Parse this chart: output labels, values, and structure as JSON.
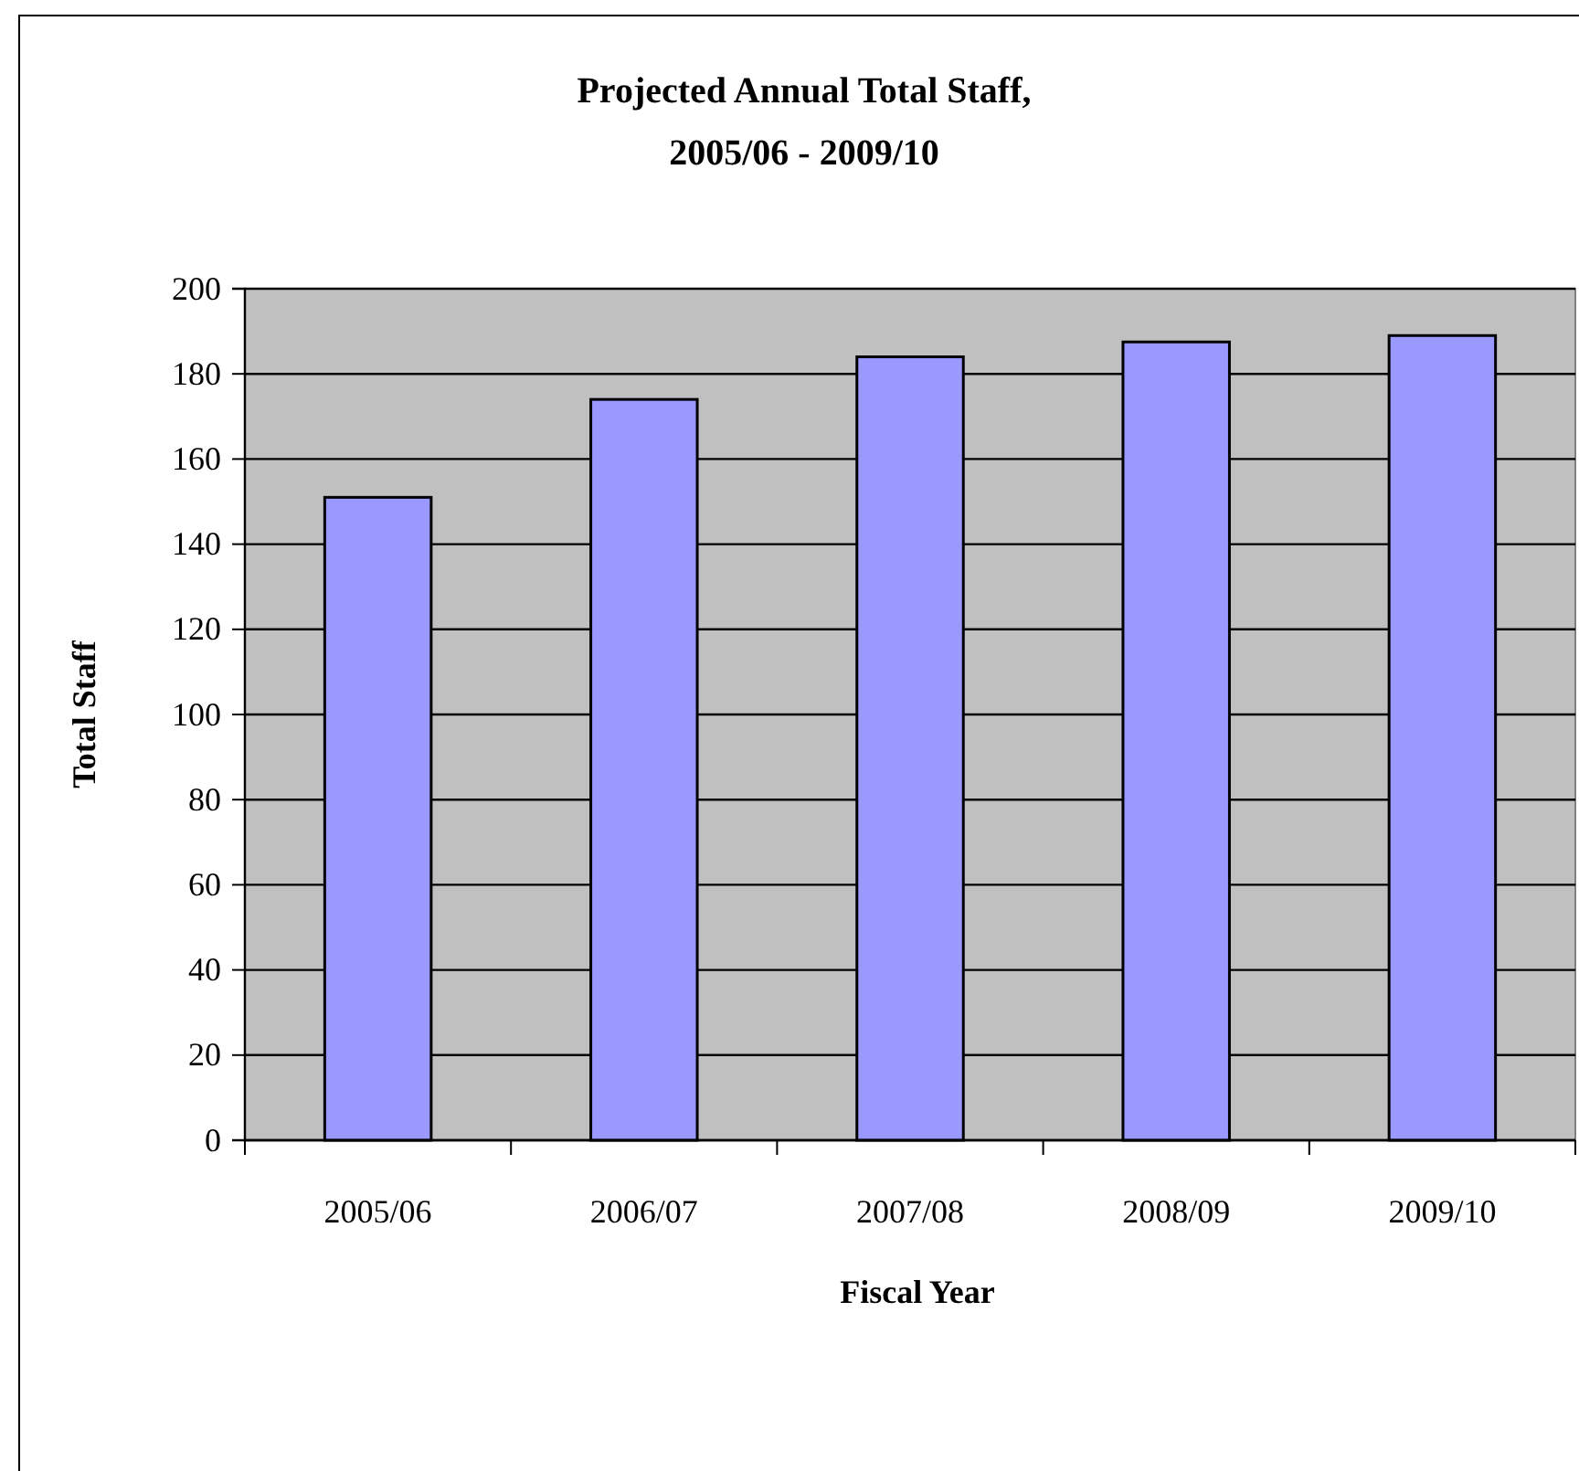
{
  "chart_data": {
    "type": "bar",
    "title": "Projected Annual Total Staff,\n2005/06 - 2009/10",
    "xlabel": "Fiscal Year",
    "ylabel": "Total Staff",
    "categories": [
      "2005/06",
      "2006/07",
      "2007/08",
      "2008/09",
      "2009/10"
    ],
    "values": [
      151,
      174,
      184,
      187.5,
      189
    ],
    "color": "#9999ff",
    "ylim": [
      0,
      200
    ],
    "yticks": [
      0,
      20,
      40,
      60,
      80,
      100,
      120,
      140,
      160,
      180,
      200
    ],
    "grid": "y"
  }
}
